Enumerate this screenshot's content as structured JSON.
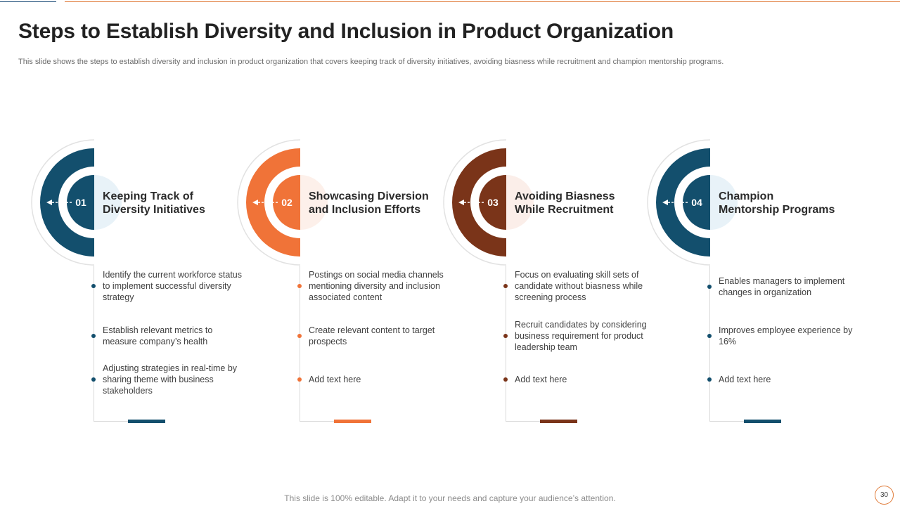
{
  "slide": {
    "title": "Steps to Establish Diversity and Inclusion in Product Organization",
    "subtitle": "This slide shows the steps to establish diversity and inclusion in product organization that covers keeping track of diversity initiatives, avoiding biasness while recruitment and champion mentorship programs.",
    "footer": "This slide is 100% editable. Adapt it to your needs and capture your audience’s attention.",
    "page_number": "30"
  },
  "colors": {
    "navy": "#134f6d",
    "orange": "#f07338",
    "brown": "#7a3419",
    "gray_line": "#d9d9d9",
    "text": "#2b2b2b"
  },
  "steps": [
    {
      "number": "01",
      "title_line1": "Keeping Track of",
      "title_line2": "Diversity Initiatives",
      "color": "#134f6d",
      "tint": "#e8f2f8",
      "bullets": [
        "Identify the current workforce status to implement successful diversity strategy",
        "Establish relevant  metrics to measure company’s health",
        "Adjusting strategies in real-time by sharing theme with business stakeholders"
      ]
    },
    {
      "number": "02",
      "title_line1": "Showcasing Diversion",
      "title_line2": "and Inclusion Efforts",
      "color": "#f07338",
      "tint": "#fdf0ea",
      "bullets": [
        "Postings on social media channels mentioning diversity and inclusion associated content",
        "Create relevant  content to target prospects",
        "Add text here"
      ]
    },
    {
      "number": "03",
      "title_line1": "Avoiding Biasness",
      "title_line2": "While Recruitment",
      "color": "#7a3419",
      "tint": "#fbeee9",
      "bullets": [
        "Focus on evaluating  skill sets of candidate without biasness while screening process",
        "Recruit candidates by considering business requirement for product leadership team",
        "Add text here"
      ]
    },
    {
      "number": "04",
      "title_line1": "Champion",
      "title_line2": "Mentorship Programs",
      "color": "#134f6d",
      "tint": "#e8f2f8",
      "bullets": [
        "Enables managers to implement changes in organization",
        "Improves employee experience by 16%",
        "Add text here"
      ]
    }
  ]
}
